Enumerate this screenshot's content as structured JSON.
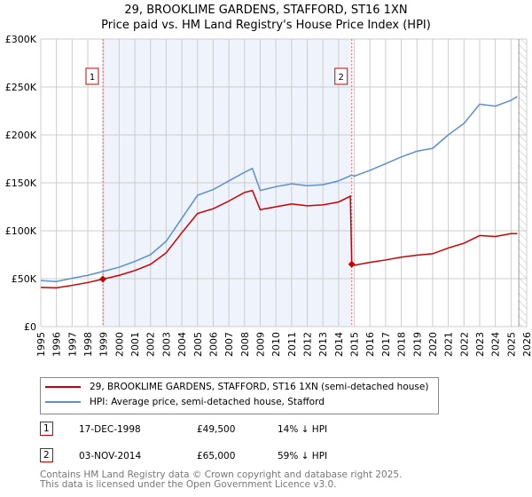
{
  "chart_data": {
    "type": "line",
    "title": "29, BROOKLIME GARDENS, STAFFORD, ST16 1XN",
    "subtitle": "Price paid vs. HM Land Registry's House Price Index (HPI)",
    "xlabel": "",
    "ylabel": "",
    "xlim": [
      1995,
      2026
    ],
    "ylim": [
      0,
      300000
    ],
    "x_ticks": [
      "1995",
      "1996",
      "1997",
      "1998",
      "1999",
      "2000",
      "2001",
      "2002",
      "2003",
      "2004",
      "2005",
      "2006",
      "2007",
      "2008",
      "2009",
      "2010",
      "2011",
      "2012",
      "2013",
      "2014",
      "2015",
      "2016",
      "2017",
      "2018",
      "2019",
      "2020",
      "2021",
      "2022",
      "2023",
      "2024",
      "2025",
      "2026"
    ],
    "y_ticks": [
      {
        "v": 0,
        "label": "£0"
      },
      {
        "v": 50000,
        "label": "£50K"
      },
      {
        "v": 100000,
        "label": "£100K"
      },
      {
        "v": 150000,
        "label": "£150K"
      },
      {
        "v": 200000,
        "label": "£200K"
      },
      {
        "v": 250000,
        "label": "£250K"
      },
      {
        "v": 300000,
        "label": "£300K"
      }
    ],
    "grid": true,
    "legend_placement": "below",
    "series": [
      {
        "name": "29, BROOKLIME GARDENS, STAFFORD, ST16 1XN (semi-detached house)",
        "color": "#cc0000",
        "x": [
          1995,
          1996,
          1997,
          1998,
          1998.96,
          2000,
          2001,
          2002,
          2003,
          2004,
          2005,
          2006,
          2007,
          2008,
          2008.5,
          2009,
          2010,
          2011,
          2012,
          2013,
          2014,
          2014.75,
          2014.84,
          2015,
          2016,
          2017,
          2018,
          2019,
          2020,
          2021,
          2022,
          2023,
          2024,
          2025,
          2025.4
        ],
        "y": [
          41000,
          40500,
          43000,
          46000,
          49500,
          53500,
          58500,
          65000,
          77000,
          98000,
          118000,
          123000,
          131000,
          140000,
          142000,
          122000,
          125000,
          128000,
          126000,
          127000,
          130000,
          136000,
          65000,
          64000,
          67000,
          69500,
          72500,
          74500,
          76000,
          82000,
          87000,
          95000,
          94000,
          97000,
          97000
        ]
      },
      {
        "name": "HPI: Average price, semi-detached house, Stafford",
        "color": "#5b8fd0",
        "x": [
          1995,
          1996,
          1997,
          1998,
          1998.96,
          2000,
          2001,
          2002,
          2003,
          2004,
          2005,
          2006,
          2007,
          2008,
          2008.5,
          2009,
          2010,
          2011,
          2012,
          2013,
          2014,
          2014.84,
          2015,
          2016,
          2017,
          2018,
          2019,
          2020,
          2021,
          2022,
          2023,
          2024,
          2025,
          2025.4
        ],
        "y": [
          48000,
          47000,
          50500,
          53500,
          57500,
          62000,
          68000,
          75000,
          89000,
          113000,
          137000,
          143000,
          152000,
          161000,
          165000,
          142000,
          146000,
          149000,
          147000,
          148000,
          152000,
          158000,
          157000,
          163000,
          170000,
          177000,
          183000,
          186000,
          200000,
          212000,
          232000,
          230000,
          236000,
          240000
        ]
      }
    ],
    "annotations": [
      {
        "label": "1",
        "x": 1998.96,
        "y": 49500
      },
      {
        "label": "2",
        "x": 2014.84,
        "y": 65000
      }
    ],
    "shaded_range": [
      1998.96,
      2014.84
    ],
    "hatched_from": 2025.5
  },
  "transactions": [
    {
      "num": "1",
      "date": "17-DEC-1998",
      "price": "£49,500",
      "hpi": "14% ↓ HPI"
    },
    {
      "num": "2",
      "date": "03-NOV-2014",
      "price": "£65,000",
      "hpi": "59% ↓ HPI"
    }
  ],
  "footer": {
    "line1": "Contains HM Land Registry data © Crown copyright and database right 2025.",
    "line2": "This data is licensed under the Open Government Licence v3.0."
  }
}
